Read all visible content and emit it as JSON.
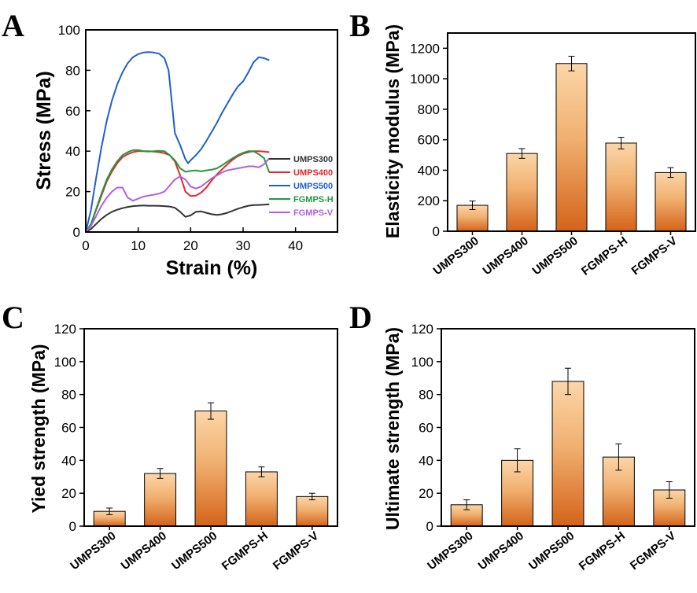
{
  "colors": {
    "bar_top": "#fcd6a8",
    "bar_bottom": "#d4631a",
    "axis": "#000000"
  },
  "chart_data": [
    {
      "panel": "A",
      "type": "line",
      "title": "",
      "xlabel": "Strain (%)",
      "ylabel": "Stress (MPa)",
      "xlim": [
        0,
        48
      ],
      "ylim": [
        0,
        100
      ],
      "xticks": [
        0,
        10,
        20,
        30,
        40
      ],
      "yticks": [
        0,
        20,
        40,
        60,
        80,
        100
      ],
      "legend_position": "lower-right",
      "series": [
        {
          "name": "UMPS300",
          "color": "#333333",
          "x": [
            0,
            1,
            2,
            3,
            4,
            5,
            6,
            7,
            8,
            9,
            10,
            11,
            12,
            13,
            14,
            15,
            16,
            17,
            18,
            19,
            20,
            21,
            22,
            23,
            24,
            25,
            26,
            27,
            28,
            29,
            30,
            31,
            32,
            33,
            34,
            35
          ],
          "y": [
            0,
            1.5,
            4,
            6.5,
            8.5,
            10,
            11,
            11.8,
            12.4,
            12.8,
            13,
            13.1,
            13,
            13,
            12.9,
            12.8,
            12.6,
            12,
            10,
            7.5,
            8.2,
            10,
            10.2,
            9.5,
            8.8,
            8.5,
            8.8,
            9.5,
            10.5,
            11.5,
            12.3,
            13,
            13.3,
            13.4,
            13.5,
            13.7
          ]
        },
        {
          "name": "UMPS400",
          "color": "#e8262a",
          "x": [
            0,
            1,
            2,
            3,
            4,
            5,
            6,
            7,
            8,
            9,
            10,
            11,
            12,
            13,
            14,
            15,
            16,
            17,
            18,
            19,
            20,
            21,
            22,
            23,
            24,
            25,
            26,
            27,
            28,
            29,
            30,
            31,
            32,
            33,
            34,
            35
          ],
          "y": [
            0,
            4,
            11,
            18,
            25,
            30,
            34,
            37,
            38.5,
            39.5,
            40,
            40,
            40,
            39.8,
            39.5,
            39,
            38,
            35,
            28,
            20,
            17.8,
            18,
            19.5,
            22,
            25.5,
            28.5,
            31,
            33.5,
            35.8,
            37.5,
            38.8,
            39.5,
            40,
            40,
            39.8,
            39.5
          ]
        },
        {
          "name": "UMPS500",
          "color": "#1f5fcc",
          "x": [
            0,
            1,
            2,
            3,
            4,
            5,
            6,
            7,
            8,
            9,
            10,
            11,
            12,
            13,
            14,
            15,
            15.8,
            16.5,
            17,
            18,
            18.5,
            19,
            19.5,
            20,
            21,
            22,
            23,
            24,
            25,
            26,
            27,
            28,
            29,
            30,
            31,
            32,
            33,
            34,
            35
          ],
          "y": [
            0,
            11,
            27,
            42,
            55,
            65,
            73,
            79,
            83.5,
            86.5,
            88,
            88.8,
            89,
            88.8,
            88.2,
            86,
            80,
            62,
            49,
            43,
            39.5,
            36,
            34,
            35.5,
            38,
            41,
            45,
            49.5,
            54,
            59,
            63.5,
            68,
            72,
            74.5,
            79,
            84,
            86.5,
            86,
            85
          ]
        },
        {
          "name": "FGMPS-H",
          "color": "#1f9a3f",
          "x": [
            0,
            1,
            2,
            3,
            4,
            5,
            6,
            7,
            8,
            9,
            10,
            11,
            12,
            13,
            14,
            15,
            16,
            17,
            18,
            19,
            20,
            21,
            22,
            23,
            24,
            25,
            26,
            27,
            28,
            29,
            30,
            31,
            32,
            33,
            34,
            35
          ],
          "y": [
            0,
            4,
            11.5,
            19,
            26,
            31,
            35,
            38,
            39.5,
            40.5,
            40.5,
            40,
            39.8,
            40,
            40.2,
            40,
            38,
            35.5,
            31.5,
            29.8,
            30.2,
            30.5,
            30,
            30.5,
            30.8,
            31.5,
            33,
            34.8,
            36.5,
            38,
            39.2,
            40,
            40,
            38.5,
            36.5,
            29.5
          ]
        },
        {
          "name": "FGMPS-V",
          "color": "#b05fe0",
          "x": [
            0,
            1,
            2,
            3,
            4,
            5,
            6,
            7,
            8,
            9,
            10,
            11,
            12,
            13,
            14,
            15,
            16,
            17,
            18,
            19,
            20,
            21,
            22,
            23,
            24,
            25,
            26,
            27,
            28,
            29,
            30,
            31,
            32,
            33,
            34,
            35
          ],
          "y": [
            0,
            3,
            8,
            13,
            17,
            20,
            22,
            22,
            17,
            15.5,
            16.5,
            17.5,
            18,
            18.5,
            19,
            20,
            23,
            26,
            27.5,
            26,
            22.5,
            21.5,
            22.5,
            24.5,
            26.5,
            28,
            29.5,
            30.5,
            31,
            31.5,
            32,
            32.5,
            32.5,
            32,
            33.5,
            36.5
          ]
        }
      ]
    },
    {
      "panel": "B",
      "type": "bar",
      "title": "",
      "xlabel": "",
      "ylabel": "Elasticity modulus (MPa)",
      "ylim": [
        0,
        1300
      ],
      "yticks": [
        0,
        200,
        400,
        600,
        800,
        1000,
        1200
      ],
      "categories": [
        "UMPS300",
        "UMPS400",
        "UMPS500",
        "FGMPS-H",
        "FGMPS-V"
      ],
      "values": [
        170,
        510,
        1100,
        578,
        385
      ],
      "errors": [
        28,
        32,
        48,
        38,
        32
      ]
    },
    {
      "panel": "C",
      "type": "bar",
      "title": "",
      "xlabel": "",
      "ylabel": "Yied strength (MPa)",
      "ylim": [
        0,
        120
      ],
      "yticks": [
        0,
        20,
        40,
        60,
        80,
        100,
        120
      ],
      "categories": [
        "UMPS300",
        "UMPS400",
        "UMPS500",
        "FGMPS-H",
        "FGMPS-V"
      ],
      "values": [
        9,
        32,
        70,
        33,
        18
      ],
      "errors": [
        2,
        3,
        5,
        3,
        2
      ]
    },
    {
      "panel": "D",
      "type": "bar",
      "title": "",
      "xlabel": "",
      "ylabel": "Ultimate strength (MPa)",
      "ylim": [
        0,
        120
      ],
      "yticks": [
        0,
        20,
        40,
        60,
        80,
        100,
        120
      ],
      "categories": [
        "UMPS300",
        "UMPS400",
        "UMPS500",
        "FGMPS-H",
        "FGMPS-V"
      ],
      "values": [
        13,
        40,
        88,
        42,
        22
      ],
      "errors": [
        3,
        7,
        8,
        8,
        5
      ]
    }
  ]
}
